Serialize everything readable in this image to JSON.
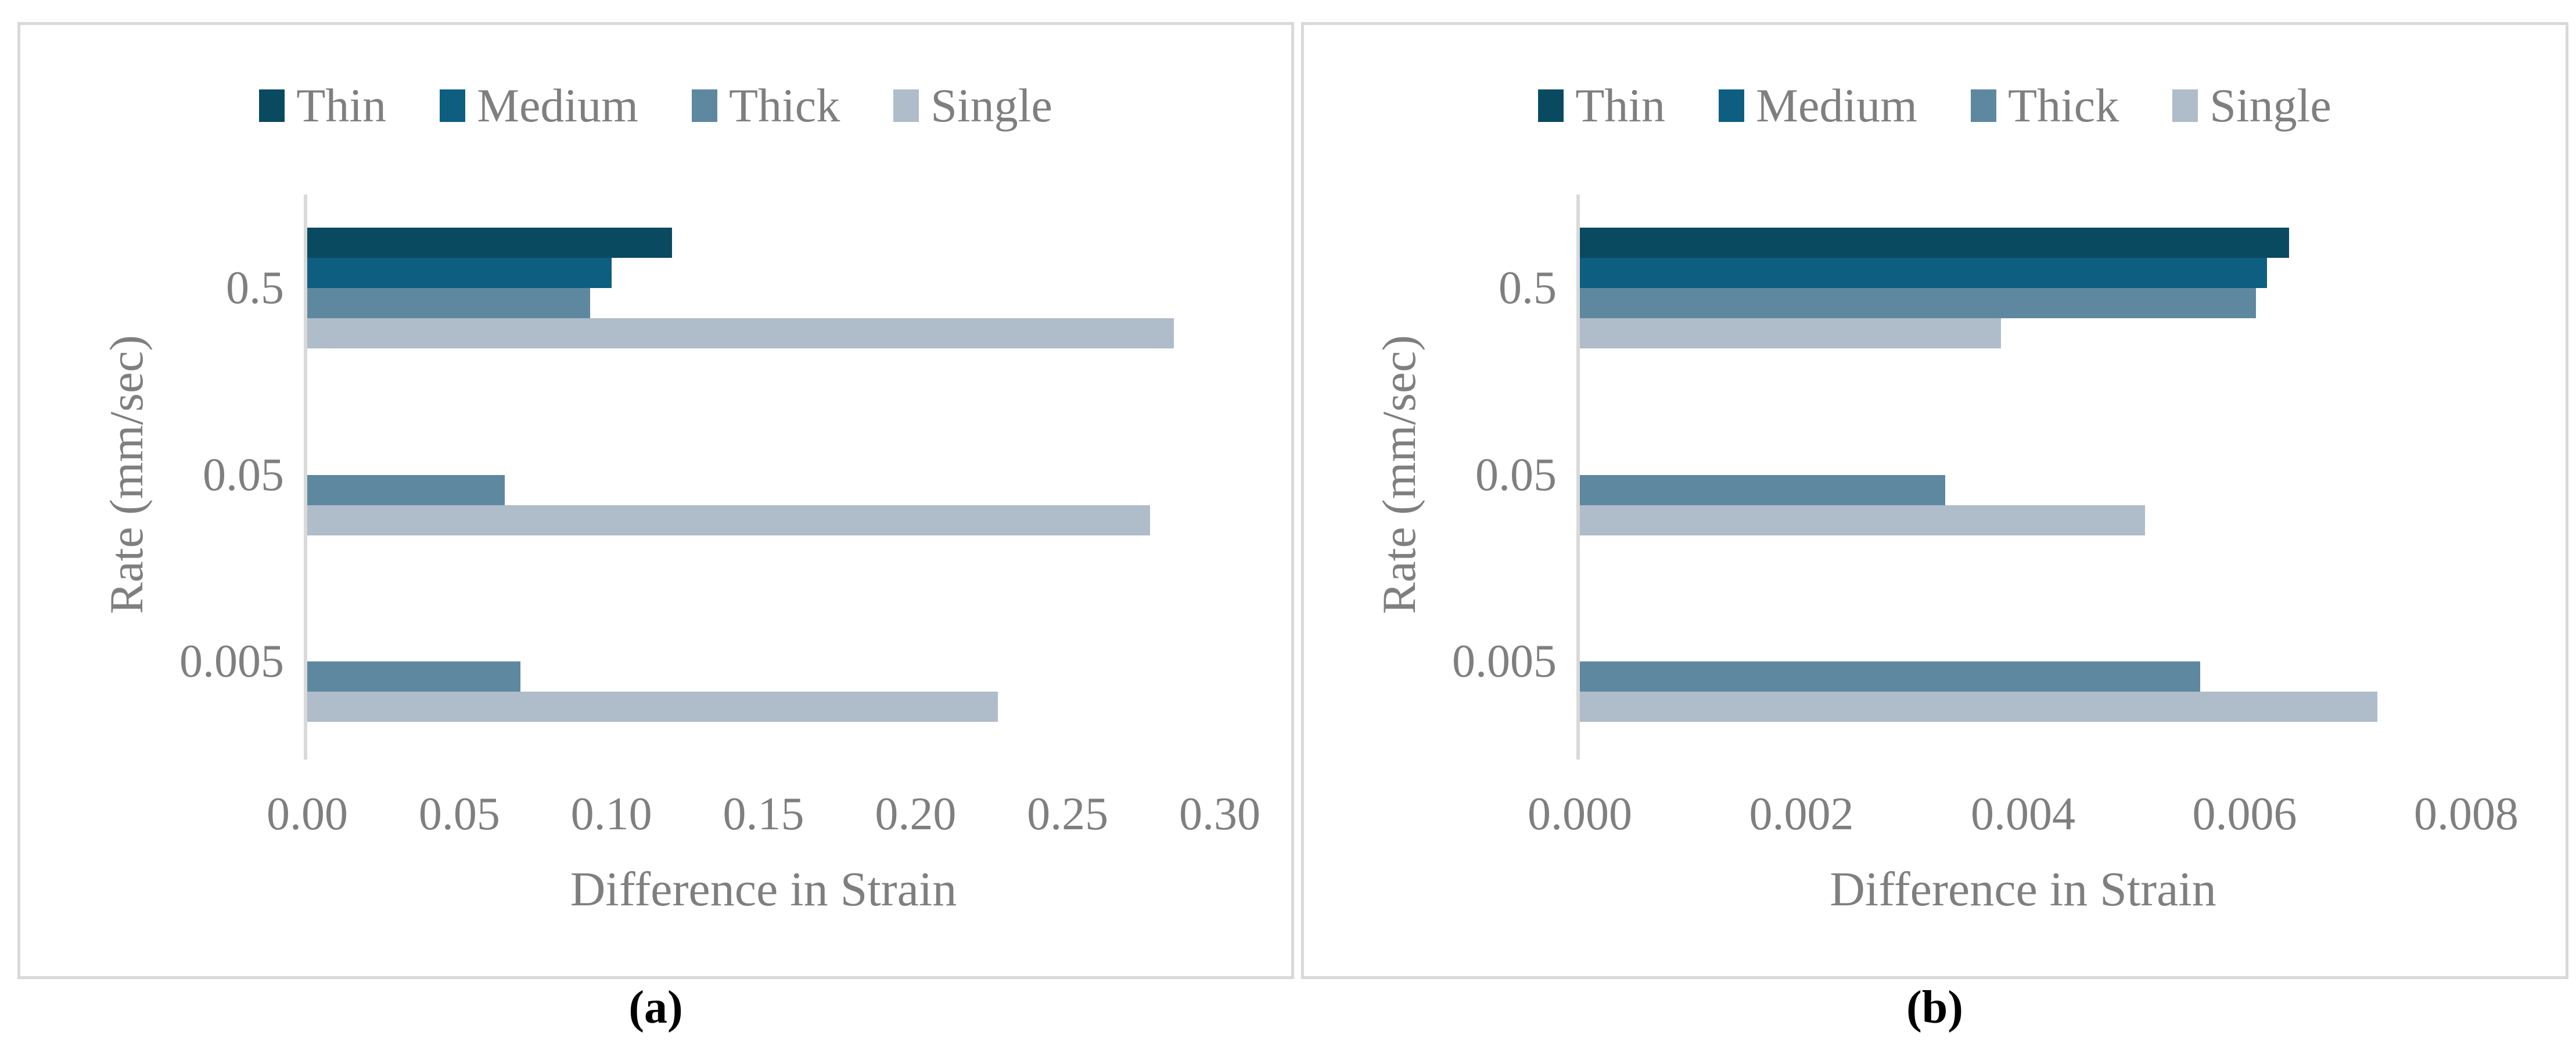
{
  "page": {
    "background": "#ffffff",
    "panel_border_color": "#d9d9d9",
    "axis_line_color": "#d9d9d9",
    "label_text_color": "#7f7f7f",
    "caption_text_color": "#000000"
  },
  "chart_data": [
    {
      "type": "bar",
      "orientation": "horizontal",
      "caption": "(a)",
      "xlabel": "Difference in Strain",
      "ylabel": "Rate (mm/sec)",
      "categories": [
        "0.5",
        "0.05",
        "0.005"
      ],
      "series": [
        {
          "name": "Thin",
          "color": "#0a4a61",
          "values": [
            0.12,
            0,
            0
          ]
        },
        {
          "name": "Medium",
          "color": "#0d5e80",
          "values": [
            0.1,
            0,
            0
          ]
        },
        {
          "name": "Thick",
          "color": "#5e88a0",
          "values": [
            0.093,
            0.065,
            0.07
          ]
        },
        {
          "name": "Single",
          "color": "#afbcc9",
          "values": [
            0.285,
            0.277,
            0.227
          ]
        }
      ],
      "xlim": [
        0,
        0.3
      ],
      "xticks": [
        "0.00",
        "0.05",
        "0.10",
        "0.15",
        "0.20",
        "0.25",
        "0.30"
      ],
      "legend_position": "top",
      "grid": false
    },
    {
      "type": "bar",
      "orientation": "horizontal",
      "caption": "(b)",
      "xlabel": "Difference in Strain",
      "ylabel": "Rate (mm/sec)",
      "categories": [
        "0.5",
        "0.05",
        "0.005"
      ],
      "series": [
        {
          "name": "Thin",
          "color": "#0a4a61",
          "values": [
            0.0064,
            0,
            0
          ]
        },
        {
          "name": "Medium",
          "color": "#0d5e80",
          "values": [
            0.0062,
            0,
            0
          ]
        },
        {
          "name": "Thick",
          "color": "#5e88a0",
          "values": [
            0.0061,
            0.0033,
            0.0056
          ]
        },
        {
          "name": "Single",
          "color": "#afbcc9",
          "values": [
            0.0038,
            0.0051,
            0.0072
          ]
        }
      ],
      "xlim": [
        0,
        0.008
      ],
      "xticks": [
        "0.000",
        "0.002",
        "0.004",
        "0.006",
        "0.008"
      ],
      "legend_position": "top",
      "grid": false
    }
  ]
}
